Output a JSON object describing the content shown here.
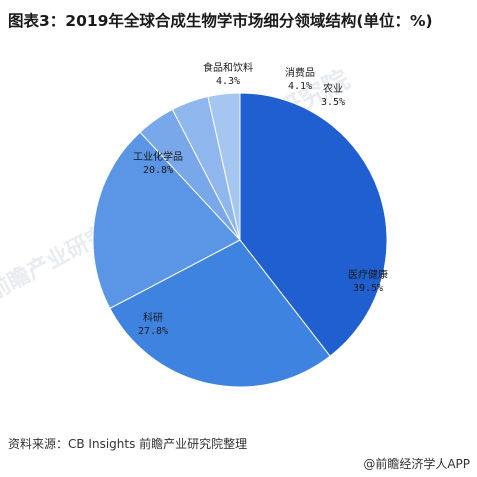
{
  "title": "图表3：2019年全球合成生物学市场细分领域结构(单位：%)",
  "source": "资料来源：CB Insights 前瞻产业研究院整理",
  "brand": "@前瞻经济学人APP",
  "watermark": "前瞻产业研究院",
  "colors": {
    "医疗健康": "#1f5fcf",
    "科研": "#3f83e0",
    "工业化学品": "#5b95e6",
    "食品和饮料": "#78a8ea",
    "消费品": "#8fb7ee",
    "农业": "#a6c6f2"
  },
  "chart_data": {
    "type": "pie",
    "title": "图表3：2019年全球合成生物学市场细分领域结构(单位：%)",
    "unit": "%",
    "slices": [
      {
        "label": "医疗健康",
        "value": 39.5,
        "text": "39.5%"
      },
      {
        "label": "科研",
        "value": 27.8,
        "text": "27.8%"
      },
      {
        "label": "工业化学品",
        "value": 20.8,
        "text": "20.8%"
      },
      {
        "label": "食品和饮料",
        "value": 4.3,
        "text": "4.3%"
      },
      {
        "label": "消费品",
        "value": 4.1,
        "text": "4.1%"
      },
      {
        "label": "农业",
        "value": 3.5,
        "text": "3.5%"
      }
    ]
  }
}
